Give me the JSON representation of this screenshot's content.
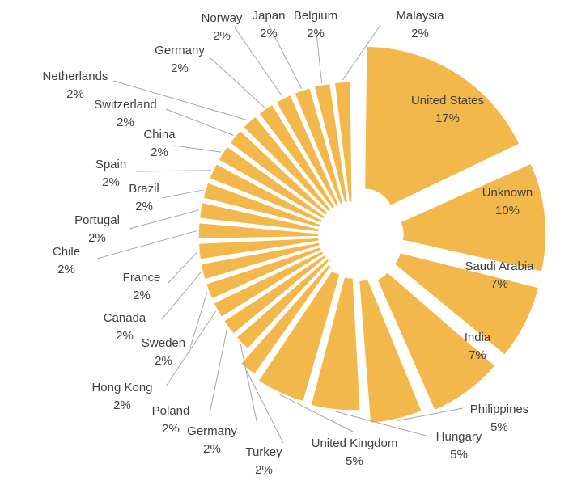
{
  "chart_data": {
    "type": "pie",
    "variant": "exploded-donut",
    "title": "",
    "slices": [
      {
        "label": "United States",
        "pct_label": "17%",
        "value": 17,
        "label_pos": "inside"
      },
      {
        "label": "Unknown",
        "pct_label": "10%",
        "value": 10,
        "label_pos": "inside"
      },
      {
        "label": "Saudi Arabia",
        "pct_label": "7%",
        "value": 7,
        "label_pos": "inside"
      },
      {
        "label": "India",
        "pct_label": "7%",
        "value": 7,
        "label_pos": "inside"
      },
      {
        "label": "Philippines",
        "pct_label": "5%",
        "value": 5,
        "label_pos": "outside"
      },
      {
        "label": "Hungary",
        "pct_label": "5%",
        "value": 5,
        "label_pos": "outside"
      },
      {
        "label": "United Kingdom",
        "pct_label": "5%",
        "value": 5,
        "label_pos": "outside"
      },
      {
        "label": "Turkey",
        "pct_label": "2%",
        "value": 2,
        "label_pos": "outside"
      },
      {
        "label": "Germany",
        "pct_label": "2%",
        "value": 2,
        "label_pos": "outside"
      },
      {
        "label": "Poland",
        "pct_label": "2%",
        "value": 2,
        "label_pos": "outside"
      },
      {
        "label": "Hong Kong",
        "pct_label": "2%",
        "value": 2,
        "label_pos": "outside"
      },
      {
        "label": "Sweden",
        "pct_label": "2%",
        "value": 2,
        "label_pos": "outside"
      },
      {
        "label": "Canada",
        "pct_label": "2%",
        "value": 2,
        "label_pos": "outside"
      },
      {
        "label": "France",
        "pct_label": "2%",
        "value": 2,
        "label_pos": "outside"
      },
      {
        "label": "Chile",
        "pct_label": "2%",
        "value": 2,
        "label_pos": "outside"
      },
      {
        "label": "Portugal",
        "pct_label": "2%",
        "value": 2,
        "label_pos": "outside"
      },
      {
        "label": "Brazil",
        "pct_label": "2%",
        "value": 2,
        "label_pos": "outside"
      },
      {
        "label": "Spain",
        "pct_label": "2%",
        "value": 2,
        "label_pos": "outside"
      },
      {
        "label": "China",
        "pct_label": "2%",
        "value": 2,
        "label_pos": "outside"
      },
      {
        "label": "Switzerland",
        "pct_label": "2%",
        "value": 2,
        "label_pos": "outside"
      },
      {
        "label": "Netherlands",
        "pct_label": "2%",
        "value": 2,
        "label_pos": "outside"
      },
      {
        "label": "Germany",
        "pct_label": "2%",
        "value": 2,
        "label_pos": "outside"
      },
      {
        "label": "Norway",
        "pct_label": "2%",
        "value": 2,
        "label_pos": "outside"
      },
      {
        "label": "Japan",
        "pct_label": "2%",
        "value": 2,
        "label_pos": "outside"
      },
      {
        "label": "Belgium",
        "pct_label": "2%",
        "value": 2,
        "label_pos": "outside"
      },
      {
        "label": "Malaysia",
        "pct_label": "2%",
        "value": 2,
        "label_pos": "outside"
      }
    ],
    "colors": {
      "slice": "#F2B84B",
      "label": "#404040",
      "leader": "#A6A6A6",
      "background": "#FFFFFF"
    },
    "legend": "none"
  }
}
